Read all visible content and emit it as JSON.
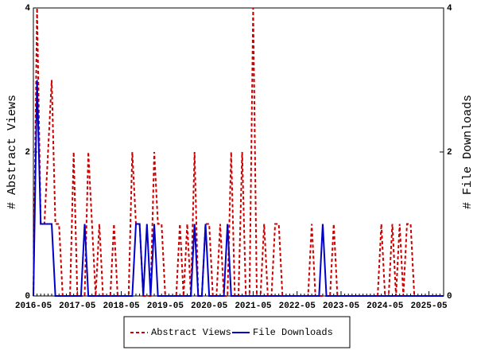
{
  "chart_data": {
    "type": "line",
    "categories": [
      "2016-05",
      null,
      null,
      null,
      null,
      null,
      null,
      null,
      null,
      null,
      null,
      null,
      "2017-05",
      null,
      null,
      null,
      null,
      null,
      null,
      null,
      null,
      null,
      null,
      null,
      "2018-05",
      null,
      null,
      null,
      null,
      null,
      null,
      null,
      null,
      null,
      null,
      null,
      "2019-05",
      null,
      null,
      null,
      null,
      null,
      null,
      null,
      null,
      null,
      null,
      null,
      "2020-05",
      null,
      null,
      null,
      null,
      null,
      null,
      null,
      null,
      null,
      null,
      null,
      "2021-05",
      null,
      null,
      null,
      null,
      null,
      null,
      null,
      null,
      null,
      null,
      null,
      "2022-05",
      null,
      null,
      null,
      null,
      null,
      null,
      null,
      null,
      null,
      null,
      null,
      "2023-05",
      null,
      null,
      null,
      null,
      null,
      null,
      null,
      null,
      null,
      null,
      null,
      "2024-05",
      null,
      null,
      null,
      null,
      null,
      null,
      null,
      null,
      null,
      null,
      null,
      "2025-05",
      null,
      null,
      null,
      null
    ],
    "ylabel": "# Abstract Views",
    "y2label": "# File Downloads",
    "ylim": [
      0,
      4
    ],
    "yticks": [
      0,
      2,
      4
    ],
    "y2lim": [
      0,
      4
    ],
    "y2ticks": [
      0,
      2,
      4
    ],
    "series": [
      {
        "name": "Abstract Views",
        "color": "#cc0000",
        "dashed": true,
        "values": [
          0,
          4,
          1,
          1,
          2,
          3,
          1,
          1,
          0,
          0,
          0,
          2,
          0,
          0,
          0,
          2,
          1,
          0,
          1,
          0,
          0,
          0,
          1,
          0,
          0,
          0,
          0,
          2,
          1,
          1,
          0,
          0,
          0,
          2,
          1,
          1,
          0,
          0,
          0,
          0,
          1,
          0,
          1,
          0,
          2,
          0,
          0,
          1,
          1,
          0,
          0,
          1,
          0,
          0,
          2,
          0,
          0,
          2,
          0,
          0,
          4,
          0,
          0,
          1,
          0,
          0,
          1,
          1,
          0,
          0,
          0,
          0,
          0,
          0,
          0,
          0,
          1,
          0,
          0,
          0,
          0,
          0,
          1,
          0,
          0,
          0,
          0,
          0,
          0,
          0,
          0,
          0,
          0,
          0,
          0,
          1,
          0,
          0,
          1,
          0,
          1,
          0,
          1,
          1,
          0,
          0,
          0,
          0,
          0,
          0,
          0,
          0,
          0
        ]
      },
      {
        "name": "File Downloads",
        "color": "#0000cc",
        "axis": "y2",
        "dashed": false,
        "values": [
          0,
          3,
          1,
          1,
          1,
          1,
          0,
          0,
          0,
          0,
          0,
          0,
          0,
          0,
          1,
          0,
          0,
          0,
          0,
          0,
          0,
          0,
          0,
          0,
          0,
          0,
          0,
          0,
          1,
          1,
          0,
          1,
          0,
          1,
          0,
          0,
          0,
          0,
          0,
          0,
          0,
          0,
          0,
          0,
          1,
          0,
          0,
          1,
          0,
          0,
          0,
          0,
          0,
          1,
          0,
          0,
          0,
          0,
          0,
          0,
          0,
          0,
          0,
          0,
          0,
          0,
          0,
          0,
          0,
          0,
          0,
          0,
          0,
          0,
          0,
          0,
          0,
          0,
          0,
          1,
          0,
          0,
          0,
          0,
          0,
          0,
          0,
          0,
          0,
          0,
          0,
          0,
          0,
          0,
          0,
          0,
          0,
          0,
          0,
          0,
          0,
          0,
          0,
          0,
          0,
          0,
          0,
          0,
          0,
          0,
          0,
          0,
          0
        ]
      }
    ]
  }
}
